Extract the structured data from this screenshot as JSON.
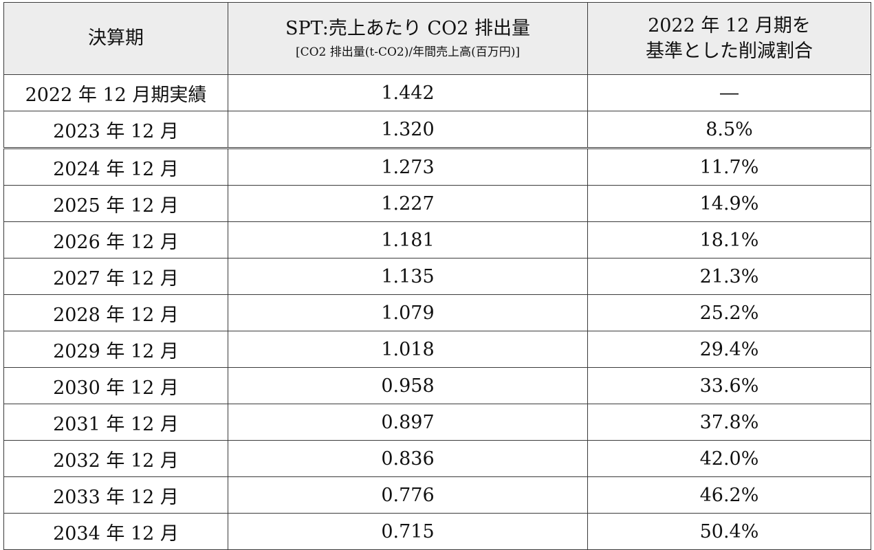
{
  "table": {
    "headers": {
      "period": "決算期",
      "spt_title": "SPT:売上あたり CO2 排出量",
      "spt_unit": "[CO2 排出量(t-CO2)/年間売上高(百万円)]",
      "reduction_line1": "2022 年 12 月期を",
      "reduction_line2": "基準とした削減割合"
    },
    "rows": [
      {
        "period": "2022 年 12 月期実績",
        "spt": "1.442",
        "reduction": "―"
      },
      {
        "period": "2023 年 12 月",
        "spt": "1.320",
        "reduction": "8.5%"
      },
      {
        "period": "2024 年 12 月",
        "spt": "1.273",
        "reduction": "11.7%"
      },
      {
        "period": "2025 年 12 月",
        "spt": "1.227",
        "reduction": "14.9%"
      },
      {
        "period": "2026 年 12 月",
        "spt": "1.181",
        "reduction": "18.1%"
      },
      {
        "period": "2027 年 12 月",
        "spt": "1.135",
        "reduction": "21.3%"
      },
      {
        "period": "2028 年 12 月",
        "spt": "1.079",
        "reduction": "25.2%"
      },
      {
        "period": "2029 年 12 月",
        "spt": "1.018",
        "reduction": "29.4%"
      },
      {
        "period": "2030 年 12 月",
        "spt": "0.958",
        "reduction": "33.6%"
      },
      {
        "period": "2031 年 12 月",
        "spt": "0.897",
        "reduction": "37.8%"
      },
      {
        "period": "2032 年 12 月",
        "spt": "0.836",
        "reduction": "42.0%"
      },
      {
        "period": "2033 年 12 月",
        "spt": "0.776",
        "reduction": "46.2%"
      },
      {
        "period": "2034 年 12 月",
        "spt": "0.715",
        "reduction": "50.4%"
      }
    ]
  },
  "colors": {
    "header_background": "#ededed",
    "border": "#3a3a3a",
    "text": "#111111"
  }
}
